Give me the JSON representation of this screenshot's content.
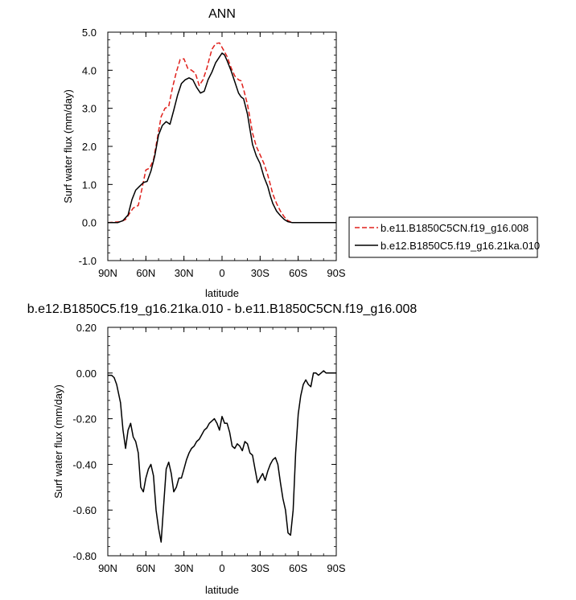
{
  "chart_data": [
    {
      "type": "line",
      "title": "ANN",
      "xlabel": "latitude",
      "ylabel": "Surf water flux (mm/day)",
      "x_ticks": [
        {
          "value": -90,
          "label": "90N"
        },
        {
          "value": -60,
          "label": "60N"
        },
        {
          "value": -30,
          "label": "30N"
        },
        {
          "value": 0,
          "label": "0"
        },
        {
          "value": 30,
          "label": "30S"
        },
        {
          "value": 60,
          "label": "60S"
        },
        {
          "value": 90,
          "label": "90S"
        }
      ],
      "y_ticks": [
        {
          "value": -1,
          "label": "-1.0"
        },
        {
          "value": 0,
          "label": "0.0"
        },
        {
          "value": 1,
          "label": "1.0"
        },
        {
          "value": 2,
          "label": "2.0"
        },
        {
          "value": 3,
          "label": "3.0"
        },
        {
          "value": 4,
          "label": "4.0"
        },
        {
          "value": 5,
          "label": "5.0"
        }
      ],
      "xlim": [
        -90,
        90
      ],
      "ylim": [
        -1,
        5
      ],
      "grid": false,
      "legend_position": "right",
      "series": [
        {
          "name": "b.e11.B1850C5CN.f19_g16.008",
          "color": "#e0201b",
          "dash": "dashed",
          "x": [
            -90,
            -80,
            -76,
            -72,
            -70,
            -66,
            -63,
            -60,
            -57,
            -54,
            -51,
            -48,
            -45,
            -42,
            -39,
            -36,
            -33,
            -30,
            -27,
            -24,
            -21,
            -18,
            -15,
            -12,
            -10,
            -8,
            -5,
            -2,
            0,
            2,
            4,
            7,
            10,
            13,
            15,
            17,
            20,
            22,
            24,
            27,
            30,
            33,
            36,
            38,
            40,
            43,
            46,
            49,
            52,
            55,
            58,
            61,
            63,
            65,
            68,
            71,
            74,
            78,
            82,
            86,
            90
          ],
          "y": [
            0.0,
            0.02,
            0.08,
            0.28,
            0.38,
            0.45,
            0.9,
            1.38,
            1.43,
            1.65,
            2.2,
            2.78,
            3.0,
            3.05,
            3.55,
            3.95,
            4.28,
            4.3,
            4.05,
            4.0,
            3.92,
            3.6,
            3.75,
            4.05,
            4.3,
            4.55,
            4.7,
            4.72,
            4.6,
            4.48,
            4.36,
            4.08,
            3.85,
            3.75,
            3.72,
            3.5,
            3.1,
            2.75,
            2.35,
            2.0,
            1.78,
            1.55,
            1.25,
            1.0,
            0.75,
            0.5,
            0.3,
            0.15,
            0.05,
            0.0,
            0.0,
            0.0,
            0.0,
            0.0,
            0.0,
            0.0,
            0.0,
            0.0,
            0.0,
            0.0,
            0.0
          ]
        },
        {
          "name": "b.e12.B1850C5.f19_g16.21ka.010",
          "color": "#000000",
          "dash": "solid",
          "x": [
            -90,
            -82,
            -78,
            -74,
            -71,
            -68,
            -65,
            -62,
            -59,
            -56,
            -53,
            -50,
            -47,
            -44,
            -41,
            -38,
            -35,
            -32,
            -29,
            -26,
            -23,
            -20,
            -17,
            -14,
            -11,
            -8,
            -5,
            -2,
            0,
            2,
            4,
            7,
            10,
            13,
            15,
            17,
            20,
            22,
            24,
            27,
            30,
            33,
            36,
            38,
            40,
            43,
            46,
            49,
            52,
            55,
            58,
            61,
            63,
            65,
            68,
            71,
            74,
            78,
            82,
            86,
            90
          ],
          "y": [
            0.0,
            0.0,
            0.05,
            0.2,
            0.6,
            0.85,
            0.95,
            1.05,
            1.08,
            1.35,
            1.75,
            2.3,
            2.55,
            2.65,
            2.58,
            2.95,
            3.35,
            3.65,
            3.75,
            3.8,
            3.75,
            3.55,
            3.4,
            3.45,
            3.75,
            3.95,
            4.2,
            4.35,
            4.45,
            4.4,
            4.25,
            4.0,
            3.7,
            3.4,
            3.3,
            3.25,
            2.85,
            2.45,
            2.05,
            1.75,
            1.55,
            1.2,
            0.95,
            0.7,
            0.5,
            0.3,
            0.18,
            0.08,
            0.02,
            0.0,
            0.0,
            0.0,
            0.0,
            0.0,
            0.0,
            0.0,
            0.0,
            0.0,
            0.0,
            0.0,
            0.0
          ]
        }
      ]
    },
    {
      "type": "line",
      "title": "b.e12.B1850C5.f19_g16.21ka.010 - b.e11.B1850C5CN.f19_g16.008",
      "xlabel": "latitude",
      "ylabel": "Surf water flux (mm/day)",
      "x_ticks": [
        {
          "value": -90,
          "label": "90N"
        },
        {
          "value": -60,
          "label": "60N"
        },
        {
          "value": -30,
          "label": "30N"
        },
        {
          "value": 0,
          "label": "0"
        },
        {
          "value": 30,
          "label": "30S"
        },
        {
          "value": 60,
          "label": "60S"
        },
        {
          "value": 90,
          "label": "90S"
        }
      ],
      "y_ticks": [
        {
          "value": -0.8,
          "label": "-0.80"
        },
        {
          "value": -0.6,
          "label": "-0.60"
        },
        {
          "value": -0.4,
          "label": "-0.40"
        },
        {
          "value": -0.2,
          "label": "-0.20"
        },
        {
          "value": 0.0,
          "label": "0.00"
        },
        {
          "value": 0.2,
          "label": "0.20"
        }
      ],
      "xlim": [
        -90,
        90
      ],
      "ylim": [
        -0.8,
        0.2
      ],
      "grid": false,
      "series": [
        {
          "color": "#000000",
          "dash": "solid",
          "x": [
            -90,
            -87,
            -85,
            -83,
            -80,
            -78,
            -76,
            -74,
            -72,
            -70,
            -68,
            -66,
            -64,
            -62,
            -60,
            -58,
            -56,
            -54,
            -52,
            -50,
            -48,
            -46,
            -44,
            -42,
            -40,
            -38,
            -36,
            -34,
            -32,
            -30,
            -28,
            -26,
            -24,
            -22,
            -20,
            -18,
            -16,
            -14,
            -12,
            -10,
            -8,
            -6,
            -4,
            -2,
            0,
            2,
            4,
            6,
            8,
            10,
            12,
            14,
            16,
            18,
            20,
            22,
            24,
            26,
            28,
            30,
            32,
            34,
            36,
            38,
            40,
            42,
            44,
            46,
            48,
            50,
            52,
            54,
            56,
            58,
            60,
            62,
            64,
            66,
            68,
            70,
            72,
            74,
            76,
            78,
            80,
            82,
            84,
            86,
            88,
            90
          ],
          "y": [
            -0.01,
            -0.01,
            -0.02,
            -0.05,
            -0.13,
            -0.25,
            -0.33,
            -0.25,
            -0.22,
            -0.28,
            -0.3,
            -0.35,
            -0.5,
            -0.52,
            -0.46,
            -0.42,
            -0.4,
            -0.45,
            -0.6,
            -0.68,
            -0.74,
            -0.58,
            -0.42,
            -0.39,
            -0.44,
            -0.52,
            -0.5,
            -0.46,
            -0.46,
            -0.42,
            -0.38,
            -0.35,
            -0.33,
            -0.32,
            -0.3,
            -0.29,
            -0.27,
            -0.25,
            -0.24,
            -0.22,
            -0.21,
            -0.2,
            -0.22,
            -0.25,
            -0.19,
            -0.22,
            -0.22,
            -0.26,
            -0.32,
            -0.33,
            -0.31,
            -0.32,
            -0.34,
            -0.3,
            -0.31,
            -0.35,
            -0.36,
            -0.42,
            -0.48,
            -0.46,
            -0.44,
            -0.47,
            -0.43,
            -0.4,
            -0.38,
            -0.37,
            -0.4,
            -0.48,
            -0.55,
            -0.6,
            -0.7,
            -0.71,
            -0.6,
            -0.35,
            -0.18,
            -0.1,
            -0.05,
            -0.03,
            -0.05,
            -0.06,
            0.0,
            0.0,
            -0.01,
            0.0,
            0.01,
            0.0,
            0.0,
            0.0,
            0.0,
            0.0
          ]
        }
      ]
    }
  ]
}
